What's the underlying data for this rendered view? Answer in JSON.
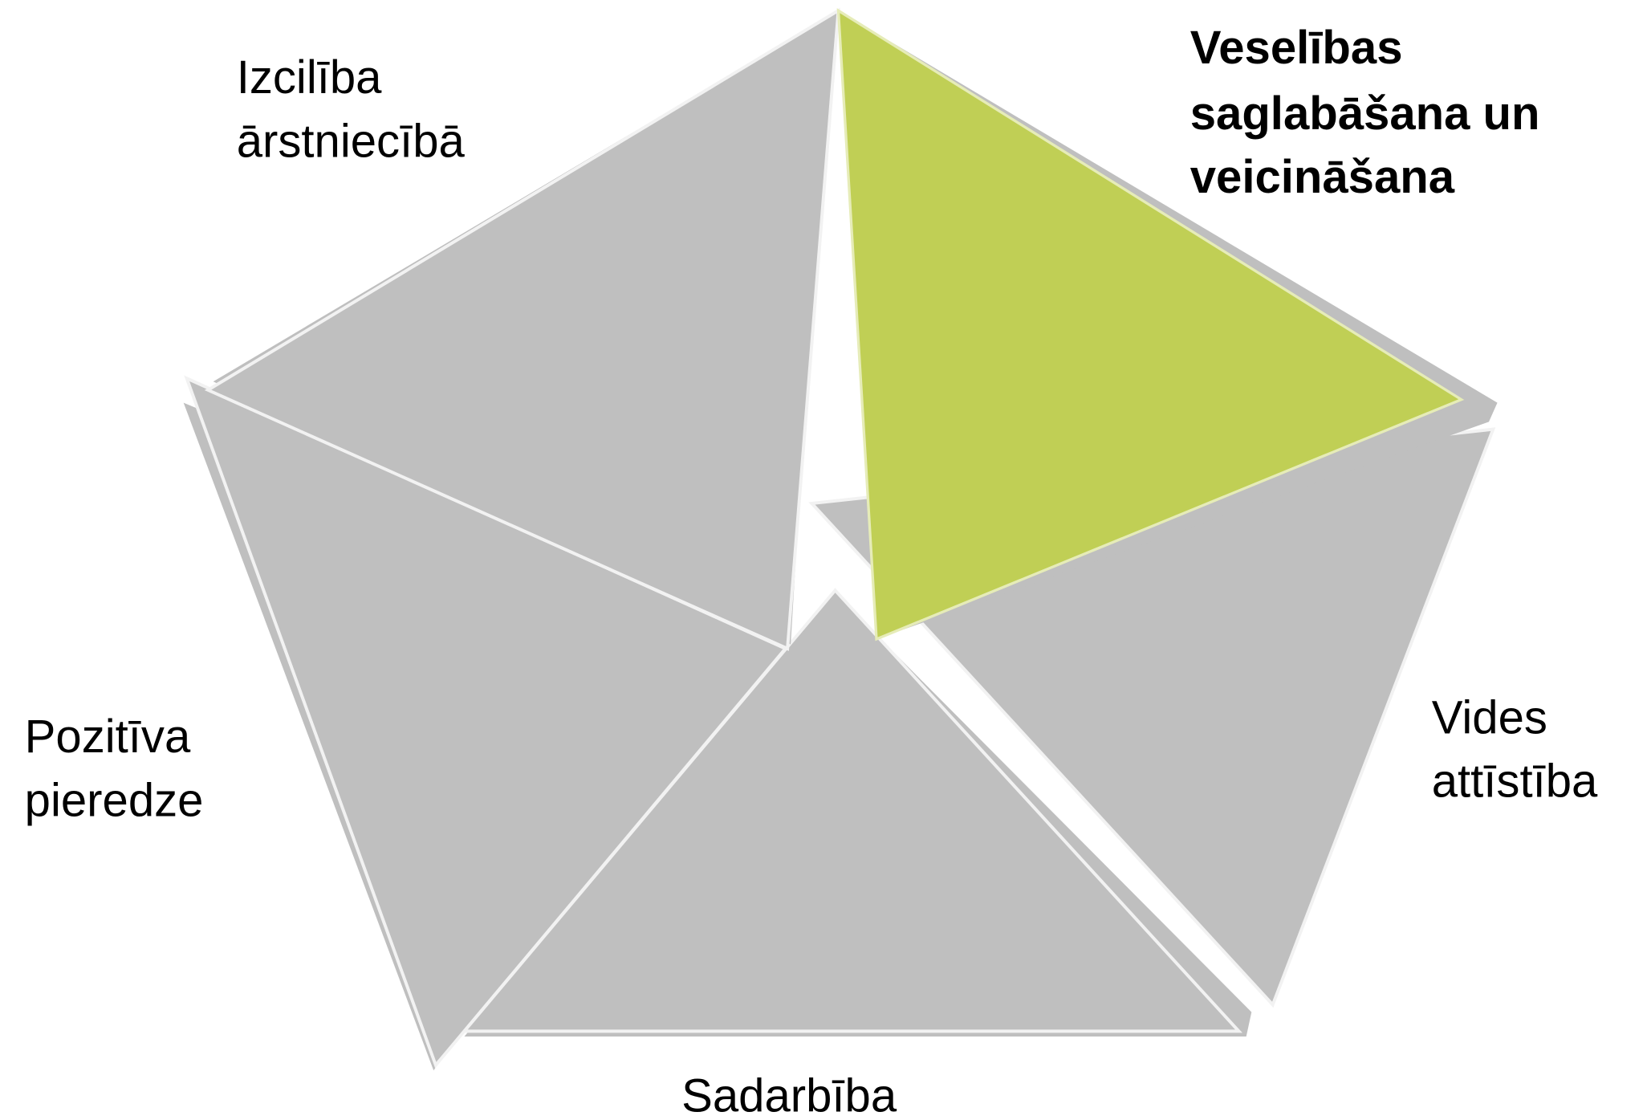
{
  "segments": [
    {
      "label_lines": [
        "Izcilība",
        "ārstniecībā"
      ]
    },
    {
      "label_lines": [
        "Veselības",
        "saglabāšana un",
        "veicināšana"
      ]
    },
    {
      "label_lines": [
        "Vides",
        "attīstība"
      ]
    },
    {
      "label_lines": [
        "Sadarbība"
      ]
    },
    {
      "label_lines": [
        "Pozitīva",
        "pieredze"
      ]
    }
  ]
}
